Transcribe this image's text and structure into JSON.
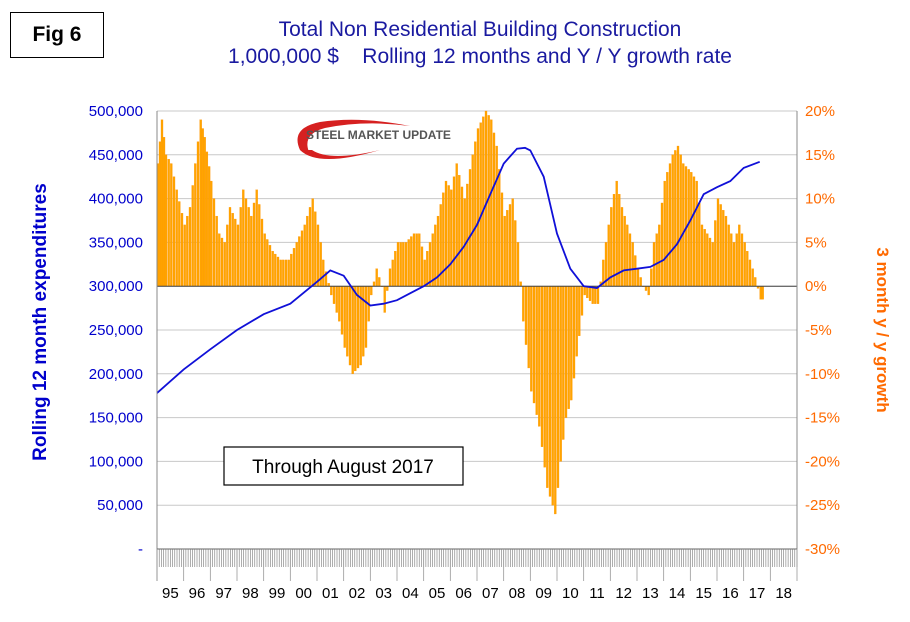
{
  "figure_label": "Fig 6",
  "title_line1": "Total Non Residential Building Construction",
  "title_line2": "1,000,000 $    Rolling 12 months and Y / Y growth rate",
  "logo_text": "STEEL MARKET UPDATE",
  "colors": {
    "line": "#1010d8",
    "bars": "#ffa500",
    "bar_edge": "#ff9000",
    "left_axis_text": "#0000cc",
    "right_axis_text": "#ff6a00",
    "grid": "#c8c8c8"
  },
  "chart_data": {
    "type": "bar",
    "annotation": "Through August 2017",
    "xlabel": "",
    "y_left_label": "Rolling 12 month expenditures",
    "y_right_label": "3 month y / y growth",
    "y_left_range": [
      0,
      500000
    ],
    "y_right_range": [
      -30,
      20
    ],
    "y_left_ticks": [
      "-",
      "50,000",
      "100,000",
      "150,000",
      "200,000",
      "250,000",
      "300,000",
      "350,000",
      "400,000",
      "450,000",
      "500,000"
    ],
    "y_right_ticks": [
      "-30%",
      "-25%",
      "-20%",
      "-15%",
      "-10%",
      "-5%",
      "0%",
      "5%",
      "10%",
      "15%",
      "20%"
    ],
    "categories": [
      "95",
      "96",
      "97",
      "98",
      "99",
      "00",
      "01",
      "02",
      "03",
      "04",
      "05",
      "06",
      "07",
      "08",
      "09",
      "10",
      "11",
      "12",
      "13",
      "14",
      "15",
      "16",
      "17",
      "18"
    ],
    "grid": true,
    "series": [
      {
        "name": "Rolling 12 month expenditures",
        "type": "line",
        "axis": "left",
        "x": [
          1995.0,
          1996.0,
          1997.0,
          1998.0,
          1999.0,
          2000.0,
          2001.0,
          2001.5,
          2002.0,
          2002.5,
          2003.0,
          2003.5,
          2004.0,
          2004.5,
          2005.0,
          2005.5,
          2006.0,
          2006.5,
          2007.0,
          2007.5,
          2008.0,
          2008.5,
          2008.8,
          2009.0,
          2009.5,
          2010.0,
          2010.5,
          2011.0,
          2011.5,
          2012.0,
          2012.5,
          2013.0,
          2013.5,
          2014.0,
          2014.5,
          2015.0,
          2015.5,
          2016.0,
          2016.5,
          2017.0,
          2017.6
        ],
        "values": [
          178000,
          205000,
          228000,
          250000,
          268000,
          280000,
          305000,
          318000,
          312000,
          290000,
          278000,
          280000,
          284000,
          292000,
          300000,
          310000,
          325000,
          345000,
          370000,
          405000,
          440000,
          457000,
          458000,
          455000,
          425000,
          360000,
          320000,
          300000,
          298000,
          310000,
          318000,
          320000,
          322000,
          330000,
          348000,
          375000,
          405000,
          413000,
          420000,
          435000,
          442000
        ]
      },
      {
        "name": "3 month y / y growth",
        "type": "bar",
        "axis": "right",
        "x": [
          1995.0,
          1995.15,
          1995.3,
          1995.5,
          1995.7,
          1996.0,
          1996.2,
          1996.4,
          1996.6,
          1996.75,
          1997.0,
          1997.3,
          1997.5,
          1997.7,
          1998.0,
          1998.2,
          1998.5,
          1998.7,
          1999.0,
          1999.3,
          1999.6,
          1999.9,
          2000.2,
          2000.5,
          2000.8,
          2001.0,
          2001.2,
          2001.5,
          2001.8,
          2002.0,
          2002.3,
          2002.6,
          2002.8,
          2003.0,
          2003.2,
          2003.4,
          2003.5,
          2003.7,
          2004.0,
          2004.3,
          2004.6,
          2004.8,
          2005.0,
          2005.2,
          2005.5,
          2005.8,
          2006.0,
          2006.2,
          2006.5,
          2006.8,
          2007.0,
          2007.3,
          2007.5,
          2007.7,
          2008.0,
          2008.3,
          2008.5,
          2008.7,
          2009.0,
          2009.3,
          2009.6,
          2009.9,
          2010.1,
          2010.3,
          2010.5,
          2010.7,
          2011.0,
          2011.3,
          2011.5,
          2011.7,
          2012.0,
          2012.2,
          2012.4,
          2012.6,
          2012.8,
          2013.0,
          2013.2,
          2013.4,
          2013.6,
          2013.8,
          2014.0,
          2014.3,
          2014.5,
          2014.7,
          2015.0,
          2015.2,
          2015.4,
          2015.6,
          2015.8,
          2016.0,
          2016.3,
          2016.6,
          2016.8,
          2017.0,
          2017.2,
          2017.4,
          2017.6
        ],
        "values": [
          14,
          19,
          15,
          14,
          11,
          7,
          9,
          14,
          19,
          17,
          12,
          6,
          5,
          9,
          7,
          11,
          8,
          11,
          6,
          4,
          3,
          3,
          5,
          7,
          10,
          7,
          3,
          -1,
          -4,
          -7,
          -10,
          -9,
          -7,
          -1,
          2,
          0,
          -3,
          2,
          5,
          5,
          6,
          6,
          3,
          5,
          8,
          12,
          11,
          14,
          10,
          15,
          18,
          20,
          19,
          16,
          8,
          10,
          5,
          -4,
          -12,
          -16,
          -23,
          -26,
          -20,
          -15,
          -13,
          -8,
          -1,
          -2,
          -2,
          3,
          9,
          12,
          9,
          7,
          5,
          2,
          0,
          -1,
          5,
          7,
          12,
          15,
          16,
          14,
          13,
          12,
          7,
          6,
          5,
          10,
          8,
          5,
          7,
          5,
          3,
          1,
          -1.5
        ]
      }
    ]
  }
}
